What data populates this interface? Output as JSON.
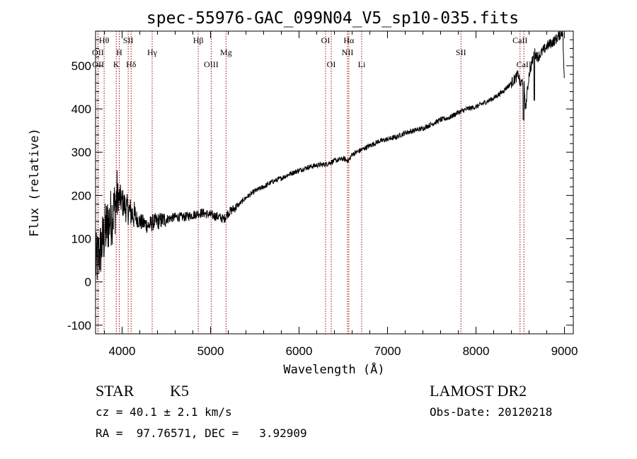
{
  "chart_data": {
    "type": "line",
    "title": "spec-55976-GAC_099N04_V5_sp10-035.fits",
    "xlabel": "Wavelength (Å)",
    "ylabel": "Flux (relative)",
    "xlim": [
      3700,
      9100
    ],
    "ylim": [
      -120,
      580
    ],
    "xticks": [
      4000,
      5000,
      6000,
      7000,
      8000,
      9000
    ],
    "yticks": [
      -100,
      0,
      100,
      200,
      300,
      400,
      500
    ],
    "grid": false,
    "series": [
      {
        "x": [
          3700,
          3750,
          3800,
          3850,
          3900,
          3950,
          4000,
          4050,
          4100,
          4150,
          4200,
          4250,
          4300,
          4350,
          4400,
          4500,
          4600,
          4700,
          4800,
          4900,
          5000,
          5100,
          5150,
          5200,
          5300,
          5400,
          5500,
          5600,
          5700,
          5800,
          5900,
          6000,
          6100,
          6200,
          6300,
          6400,
          6500,
          6560,
          6600,
          6700,
          6800,
          6900,
          7000,
          7100,
          7200,
          7300,
          7400,
          7500,
          7600,
          7700,
          7800,
          7900,
          8000,
          8100,
          8200,
          8300,
          8400,
          8480,
          8500,
          8540,
          8560,
          8600,
          8660,
          8700,
          8800,
          8900,
          8980,
          9000
        ],
        "y": [
          40,
          70,
          110,
          140,
          160,
          200,
          185,
          170,
          160,
          150,
          140,
          135,
          130,
          138,
          140,
          145,
          150,
          150,
          155,
          160,
          155,
          150,
          145,
          160,
          175,
          195,
          210,
          220,
          232,
          240,
          250,
          258,
          265,
          270,
          272,
          280,
          285,
          280,
          295,
          305,
          315,
          325,
          330,
          335,
          345,
          350,
          355,
          365,
          375,
          380,
          392,
          400,
          405,
          415,
          425,
          440,
          460,
          480,
          455,
          470,
          400,
          480,
          530,
          520,
          545,
          560,
          580,
          450
        ]
      }
    ],
    "lines": [
      {
        "label": "Hθ",
        "x": 3797,
        "row": 1
      },
      {
        "label": "OII",
        "x": 3727,
        "row": 2
      },
      {
        "label": "OII",
        "x": 3729,
        "row": 3
      },
      {
        "label": "H",
        "x": 3968,
        "row": 2
      },
      {
        "label": "K",
        "x": 3934,
        "row": 3
      },
      {
        "label": "SII",
        "x": 4069,
        "row": 1
      },
      {
        "label": "Hδ",
        "x": 4102,
        "row": 3
      },
      {
        "label": "Hγ",
        "x": 4340,
        "row": 2
      },
      {
        "label": "Hβ",
        "x": 4861,
        "row": 1
      },
      {
        "label": "OIII",
        "x": 5007,
        "row": 3
      },
      {
        "label": "Mg",
        "x": 5175,
        "row": 2
      },
      {
        "label": "OI",
        "x": 6300,
        "row": 1
      },
      {
        "label": "OI",
        "x": 6364,
        "row": 3
      },
      {
        "label": "Hα",
        "x": 6563,
        "row": 1
      },
      {
        "label": "NII",
        "x": 6548,
        "row": 2
      },
      {
        "label": "Li",
        "x": 6708,
        "row": 3
      },
      {
        "label": "SII",
        "x": 7830,
        "row": 2
      },
      {
        "label": "CaII",
        "x": 8498,
        "row": 1
      },
      {
        "label": "CaII",
        "x": 8542,
        "row": 3
      }
    ]
  },
  "info": {
    "class": "STAR",
    "subclass": "K5",
    "survey": "LAMOST DR2",
    "cz": "cz = 40.1 ± 2.1 km/s",
    "obs_date": "Obs-Date: 20120218",
    "coords": "RA =  97.76571, DEC =   3.92909"
  }
}
